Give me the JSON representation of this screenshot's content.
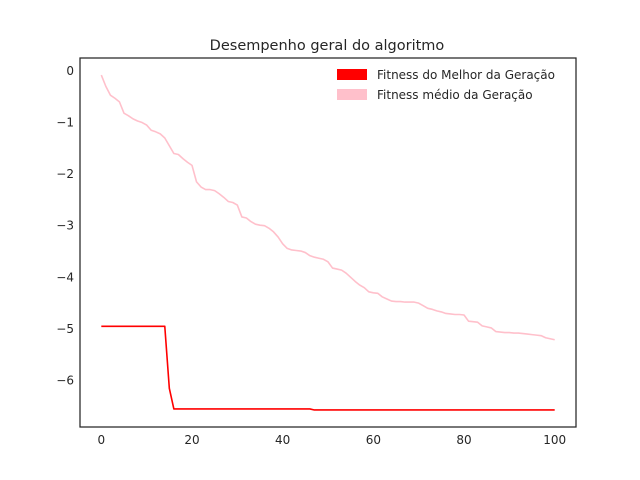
{
  "chart_data": {
    "type": "line",
    "title": "Desempenho geral do algoritmo",
    "xlabel": "",
    "ylabel": "",
    "xlim": [
      -4.7,
      104.7
    ],
    "ylim": [
      -6.9,
      0.25
    ],
    "xticks": [
      0,
      20,
      40,
      60,
      80,
      100
    ],
    "yticks": [
      0,
      -1,
      -2,
      -3,
      -4,
      -5,
      -6
    ],
    "xtick_labels": [
      "0",
      "20",
      "40",
      "60",
      "80",
      "100"
    ],
    "ytick_labels": [
      "0",
      "−1",
      "−2",
      "−3",
      "−4",
      "−5",
      "−6"
    ],
    "grid": false,
    "legend_position": "top-right",
    "series": [
      {
        "name": "Fitness do Melhor da Geração",
        "color": "#ff0000",
        "points": [
          [
            0,
            -4.95
          ],
          [
            14,
            -4.95
          ],
          [
            15,
            -6.15
          ],
          [
            16,
            -6.55
          ],
          [
            46,
            -6.55
          ],
          [
            47,
            -6.57
          ],
          [
            100,
            -6.57
          ]
        ]
      },
      {
        "name": "Fitness médio da Geração",
        "color": "#ffc0cb",
        "points": [
          [
            0,
            -0.08
          ],
          [
            1,
            -0.3
          ],
          [
            2,
            -0.47
          ],
          [
            3,
            -0.53
          ],
          [
            4,
            -0.6
          ],
          [
            5,
            -0.82
          ],
          [
            6,
            -0.87
          ],
          [
            7,
            -0.93
          ],
          [
            8,
            -0.97
          ],
          [
            9,
            -1.0
          ],
          [
            10,
            -1.05
          ],
          [
            11,
            -1.15
          ],
          [
            12,
            -1.18
          ],
          [
            13,
            -1.22
          ],
          [
            14,
            -1.3
          ],
          [
            15,
            -1.45
          ],
          [
            16,
            -1.6
          ],
          [
            17,
            -1.62
          ],
          [
            18,
            -1.7
          ],
          [
            19,
            -1.77
          ],
          [
            20,
            -1.83
          ],
          [
            21,
            -2.15
          ],
          [
            22,
            -2.25
          ],
          [
            23,
            -2.3
          ],
          [
            24,
            -2.3
          ],
          [
            25,
            -2.32
          ],
          [
            26,
            -2.38
          ],
          [
            27,
            -2.45
          ],
          [
            28,
            -2.53
          ],
          [
            29,
            -2.55
          ],
          [
            30,
            -2.6
          ],
          [
            31,
            -2.83
          ],
          [
            32,
            -2.85
          ],
          [
            33,
            -2.92
          ],
          [
            34,
            -2.97
          ],
          [
            35,
            -2.99
          ],
          [
            36,
            -3.0
          ],
          [
            37,
            -3.05
          ],
          [
            38,
            -3.12
          ],
          [
            39,
            -3.22
          ],
          [
            40,
            -3.35
          ],
          [
            41,
            -3.44
          ],
          [
            42,
            -3.47
          ],
          [
            43,
            -3.48
          ],
          [
            44,
            -3.49
          ],
          [
            45,
            -3.52
          ],
          [
            46,
            -3.58
          ],
          [
            47,
            -3.61
          ],
          [
            48,
            -3.63
          ],
          [
            49,
            -3.65
          ],
          [
            50,
            -3.7
          ],
          [
            51,
            -3.82
          ],
          [
            52,
            -3.84
          ],
          [
            53,
            -3.86
          ],
          [
            54,
            -3.92
          ],
          [
            55,
            -4.0
          ],
          [
            56,
            -4.08
          ],
          [
            57,
            -4.15
          ],
          [
            58,
            -4.2
          ],
          [
            59,
            -4.28
          ],
          [
            60,
            -4.3
          ],
          [
            61,
            -4.31
          ],
          [
            62,
            -4.38
          ],
          [
            63,
            -4.42
          ],
          [
            64,
            -4.46
          ],
          [
            65,
            -4.47
          ],
          [
            66,
            -4.47
          ],
          [
            67,
            -4.48
          ],
          [
            68,
            -4.48
          ],
          [
            69,
            -4.48
          ],
          [
            70,
            -4.5
          ],
          [
            71,
            -4.55
          ],
          [
            72,
            -4.6
          ],
          [
            73,
            -4.62
          ],
          [
            74,
            -4.65
          ],
          [
            75,
            -4.67
          ],
          [
            76,
            -4.7
          ],
          [
            77,
            -4.71
          ],
          [
            78,
            -4.72
          ],
          [
            79,
            -4.72
          ],
          [
            80,
            -4.73
          ],
          [
            81,
            -4.85
          ],
          [
            82,
            -4.86
          ],
          [
            83,
            -4.87
          ],
          [
            84,
            -4.94
          ],
          [
            85,
            -4.96
          ],
          [
            86,
            -4.98
          ],
          [
            87,
            -5.05
          ],
          [
            88,
            -5.06
          ],
          [
            89,
            -5.07
          ],
          [
            90,
            -5.07
          ],
          [
            91,
            -5.08
          ],
          [
            92,
            -5.08
          ],
          [
            93,
            -5.09
          ],
          [
            94,
            -5.1
          ],
          [
            95,
            -5.11
          ],
          [
            96,
            -5.12
          ],
          [
            97,
            -5.13
          ],
          [
            98,
            -5.17
          ],
          [
            99,
            -5.19
          ],
          [
            100,
            -5.21
          ]
        ]
      }
    ]
  }
}
